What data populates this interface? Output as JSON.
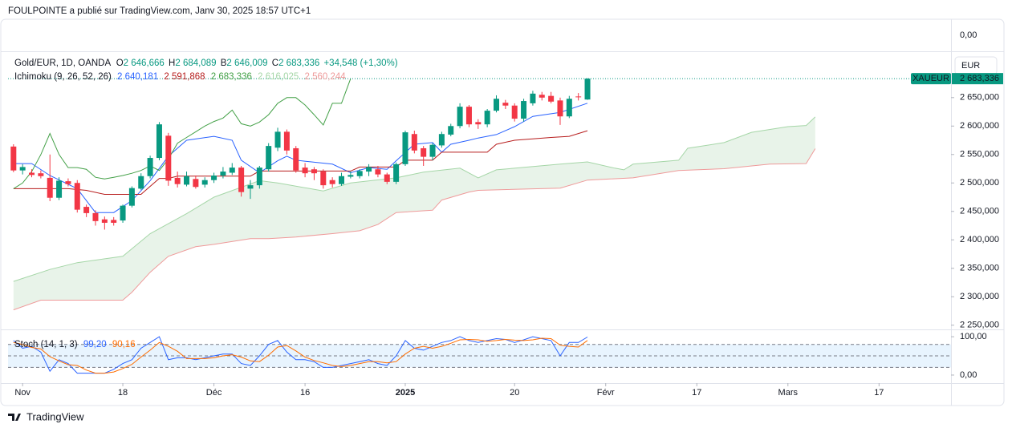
{
  "header": "FOULPOINTE a publié sur TradingView.com, Janv 30, 2025 18:57 UTC+1",
  "footer": "TradingView",
  "top_pane_label": "0,00",
  "chart_data": [
    {
      "type": "candlestick",
      "title": "Gold/EUR, 1D, OANDA",
      "ohlc_legend": [
        {
          "key": "O",
          "value": "2 646,666"
        },
        {
          "key": "H",
          "value": "2 684,089"
        },
        {
          "key": "B",
          "value": "2 646,009"
        },
        {
          "key": "C",
          "value": "2 683,336"
        }
      ],
      "change": "+34,548 (+1,30%)",
      "currency": "EUR",
      "symbol": "XAUEUR",
      "last_price_label": "2 683,336",
      "up_color": "#089981",
      "down_color": "#f23645",
      "x": [
        0,
        1,
        2,
        3,
        4,
        5,
        6,
        7,
        8,
        9,
        10,
        11,
        12,
        13,
        14,
        15,
        16,
        17,
        18,
        19,
        20,
        21,
        22,
        23,
        24,
        25,
        26,
        27,
        28,
        29,
        30,
        31,
        32,
        33,
        34,
        35,
        36,
        37,
        38,
        39,
        40,
        41,
        42,
        43,
        44,
        45,
        46,
        47,
        48,
        49,
        50,
        51,
        52,
        53,
        54,
        55,
        56,
        57,
        58,
        59,
        60,
        61,
        62,
        63
      ],
      "open": [
        2564,
        2522,
        2518,
        2517,
        2509,
        2474,
        2503,
        2500,
        2458,
        2447,
        2436,
        2435,
        2434,
        2460,
        2490,
        2512,
        2544,
        2583,
        2509,
        2497,
        2507,
        2497,
        2505,
        2513,
        2518,
        2527,
        2490,
        2496,
        2524,
        2562,
        2590,
        2561,
        2527,
        2524,
        2520,
        2505,
        2498,
        2511,
        2512,
        2520,
        2524,
        2515,
        2502,
        2533,
        2586,
        2561,
        2546,
        2566,
        2585,
        2600,
        2634,
        2607,
        2603,
        2627,
        2641,
        2636,
        2613,
        2640,
        2655,
        2653,
        2645,
        2617,
        2652,
        2646.666
      ],
      "high": [
        2568,
        2533,
        2524,
        2522,
        2550,
        2510,
        2508,
        2505,
        2462,
        2452,
        2441,
        2440,
        2462,
        2494,
        2517,
        2548,
        2607,
        2588,
        2520,
        2520,
        2513,
        2510,
        2518,
        2528,
        2535,
        2530,
        2505,
        2530,
        2570,
        2597,
        2594,
        2565,
        2535,
        2528,
        2524,
        2510,
        2518,
        2520,
        2524,
        2533,
        2530,
        2518,
        2536,
        2592,
        2592,
        2565,
        2570,
        2590,
        2604,
        2640,
        2637,
        2612,
        2630,
        2654,
        2646,
        2640,
        2648,
        2662,
        2660,
        2660,
        2650,
        2653,
        2658,
        2684.089
      ],
      "low": [
        2519,
        2515,
        2510,
        2508,
        2468,
        2470,
        2494,
        2448,
        2440,
        2425,
        2418,
        2425,
        2430,
        2457,
        2488,
        2508,
        2540,
        2495,
        2492,
        2494,
        2490,
        2492,
        2500,
        2508,
        2514,
        2476,
        2472,
        2490,
        2520,
        2556,
        2550,
        2518,
        2510,
        2505,
        2490,
        2492,
        2495,
        2508,
        2508,
        2512,
        2510,
        2498,
        2498,
        2530,
        2552,
        2530,
        2540,
        2562,
        2582,
        2596,
        2598,
        2595,
        2598,
        2624,
        2630,
        2608,
        2608,
        2636,
        2645,
        2640,
        2602,
        2614,
        2645,
        2646.009
      ],
      "close": [
        2522,
        2528,
        2514,
        2512,
        2474,
        2504,
        2498,
        2453,
        2447,
        2433,
        2430,
        2430,
        2460,
        2491,
        2512,
        2544,
        2603,
        2504,
        2498,
        2512,
        2493,
        2505,
        2513,
        2520,
        2527,
        2484,
        2496,
        2527,
        2565,
        2590,
        2557,
        2522,
        2517,
        2517,
        2496,
        2498,
        2512,
        2514,
        2521,
        2528,
        2515,
        2502,
        2533,
        2589,
        2557,
        2546,
        2567,
        2586,
        2600,
        2634,
        2603,
        2603,
        2627,
        2648,
        2636,
        2613,
        2644,
        2657,
        2650,
        2643,
        2617,
        2648,
        2651,
        2683.336
      ],
      "overlay_title": "Ichimoku (9, 26, 52, 26)",
      "overlays": [
        {
          "color": "#2962ff",
          "value_label": "2 640,181",
          "x": [
            0,
            2,
            4,
            7,
            9,
            11,
            13,
            15,
            17,
            19,
            22,
            24,
            25,
            27,
            29,
            30,
            31,
            35,
            37,
            39,
            41,
            42,
            44,
            46,
            47,
            48,
            50,
            51,
            53,
            55,
            57,
            60,
            63
          ],
          "values": [
            2534,
            2534,
            2513,
            2490,
            2448,
            2448,
            2469,
            2504,
            2547,
            2575,
            2582,
            2575,
            2540,
            2518,
            2539,
            2547,
            2540,
            2533,
            2518,
            2527,
            2524,
            2539,
            2568,
            2571,
            2554,
            2568,
            2575,
            2579,
            2585,
            2599,
            2617,
            2624,
            2640.181
          ]
        },
        {
          "color": "#b71c1c",
          "value_label": "2 591,868",
          "x": [
            0,
            6,
            8,
            10,
            14,
            15,
            16,
            17,
            18,
            26,
            27,
            37,
            38,
            42,
            43,
            46,
            47,
            52,
            53,
            55,
            59,
            61,
            63
          ],
          "values": [
            2490,
            2490,
            2487,
            2480,
            2480,
            2494,
            2508,
            2508,
            2512,
            2512,
            2521,
            2521,
            2528,
            2528,
            2540,
            2540,
            2554,
            2554,
            2568,
            2575,
            2580,
            2582,
            2591.868
          ]
        },
        {
          "color": "#43a047",
          "value_label": "2 683,336",
          "x": [
            0,
            1,
            2,
            3,
            4,
            5,
            6,
            7,
            8,
            9,
            10,
            11,
            12,
            13,
            14,
            15,
            16,
            17,
            18,
            19,
            20,
            21,
            22,
            23,
            24,
            25,
            26,
            27,
            28,
            29,
            30,
            31,
            32,
            33,
            34,
            35,
            36,
            37
          ],
          "values": [
            2490,
            2500,
            2520,
            2550,
            2587,
            2550,
            2527,
            2527,
            2524,
            2510,
            2507,
            2510,
            2513,
            2517,
            2522,
            2530,
            2522,
            2542,
            2570,
            2580,
            2590,
            2600,
            2608,
            2614,
            2628,
            2604,
            2600,
            2607,
            2620,
            2640,
            2650,
            2650,
            2637,
            2620,
            2602,
            2640,
            2640,
            2683.336
          ]
        },
        {
          "color": "#a5d6a7",
          "value_label": "2 616,025",
          "cloud": "top",
          "x": [
            0,
            4,
            7,
            12,
            15,
            19,
            22,
            27,
            29,
            34,
            37,
            42,
            45,
            49,
            51,
            53,
            60,
            63,
            66,
            67,
            68,
            73,
            74,
            78,
            81,
            85,
            87,
            88
          ],
          "values": [
            2327,
            2348,
            2360,
            2371,
            2411,
            2446,
            2475,
            2504,
            2500,
            2486,
            2500,
            2509,
            2519,
            2526,
            2509,
            2523,
            2533,
            2537,
            2526,
            2523,
            2533,
            2540,
            2561,
            2571,
            2589,
            2599,
            2601,
            2616.025
          ]
        },
        {
          "color": "#ef9a9a",
          "value_label": "2 560,244",
          "cloud": "bottom",
          "x": [
            0,
            3,
            12,
            13,
            15,
            17,
            20,
            22,
            26,
            28,
            31,
            35,
            38,
            40,
            42,
            46,
            47,
            50,
            51,
            60,
            63,
            68,
            73,
            78,
            83,
            87,
            88
          ],
          "values": [
            2277,
            2294,
            2294,
            2308,
            2343,
            2371,
            2388,
            2392,
            2402,
            2402,
            2405,
            2411,
            2416,
            2427,
            2448,
            2452,
            2470,
            2484,
            2487,
            2491,
            2505,
            2509,
            2522,
            2525,
            2533,
            2534,
            2560.244
          ]
        }
      ],
      "cloud_color": "rgba(67,160,71,0.12)",
      "xlim": [
        -0.6,
        102.9
      ],
      "xticks": [
        {
          "value": 1,
          "label": "Nov"
        },
        {
          "value": 12,
          "label": "18"
        },
        {
          "value": 22,
          "label": "Déc"
        },
        {
          "value": 32,
          "label": "16"
        },
        {
          "value": 43,
          "label": "2025"
        },
        {
          "value": 55,
          "label": "20"
        },
        {
          "value": 65,
          "label": "Févr"
        },
        {
          "value": 75,
          "label": "17"
        },
        {
          "value": 85,
          "label": "Mars"
        },
        {
          "value": 95,
          "label": "17"
        }
      ],
      "ylim": [
        2244,
        2730
      ],
      "yticks": [
        {
          "value": 2650,
          "label": "2 650,000"
        },
        {
          "value": 2600,
          "label": "2 600,000"
        },
        {
          "value": 2550,
          "label": "2 550,000"
        },
        {
          "value": 2500,
          "label": "2 500,000"
        },
        {
          "value": 2450,
          "label": "2 450,000"
        },
        {
          "value": 2400,
          "label": "2 400,000"
        },
        {
          "value": 2350,
          "label": "2 350,000"
        },
        {
          "value": 2300,
          "label": "2 300,000"
        },
        {
          "value": 2250,
          "label": "2 250,000"
        }
      ]
    },
    {
      "type": "line",
      "title": "Stoch (14, 1, 3)",
      "x": [
        0,
        1,
        2,
        3,
        4,
        5,
        6,
        7,
        8,
        9,
        10,
        11,
        12,
        13,
        14,
        15,
        16,
        17,
        18,
        19,
        20,
        21,
        22,
        23,
        24,
        25,
        26,
        27,
        28,
        29,
        30,
        31,
        32,
        33,
        34,
        35,
        36,
        37,
        38,
        39,
        40,
        41,
        42,
        43,
        44,
        45,
        46,
        47,
        48,
        49,
        50,
        51,
        52,
        53,
        54,
        55,
        56,
        57,
        58,
        59,
        60,
        61,
        62,
        63
      ],
      "series": [
        {
          "color": "#2962ff",
          "value_label": "99,20",
          "values": [
            90,
            70,
            75,
            60,
            10,
            40,
            30,
            5,
            5,
            5,
            5,
            15,
            30,
            40,
            70,
            85,
            100,
            40,
            45,
            45,
            40,
            45,
            50,
            55,
            55,
            30,
            25,
            50,
            80,
            90,
            60,
            40,
            40,
            35,
            20,
            20,
            25,
            30,
            35,
            40,
            30,
            25,
            50,
            90,
            70,
            65,
            75,
            85,
            90,
            100,
            90,
            85,
            90,
            95,
            93,
            85,
            92,
            100,
            95,
            90,
            50,
            85,
            85,
            99.2
          ]
        },
        {
          "color": "#ff6d00",
          "value_label": "90,16",
          "values": [
            85,
            80,
            72,
            68,
            48,
            37,
            27,
            25,
            13,
            5,
            5,
            8,
            17,
            28,
            47,
            65,
            85,
            75,
            62,
            43,
            43,
            43,
            45,
            50,
            53,
            47,
            37,
            35,
            52,
            73,
            77,
            63,
            47,
            38,
            32,
            25,
            22,
            25,
            30,
            35,
            35,
            32,
            35,
            55,
            70,
            75,
            70,
            75,
            83,
            92,
            93,
            92,
            88,
            90,
            93,
            91,
            90,
            92,
            96,
            95,
            78,
            75,
            73,
            90.16
          ]
        }
      ],
      "band_lines": [
        80,
        50,
        20
      ],
      "band_fill": "rgba(33,150,243,0.1)",
      "xlim": [
        -0.6,
        102.9
      ],
      "ylim": [
        -21,
        117
      ],
      "yticks": [
        {
          "value": 100,
          "label": "100,00"
        },
        {
          "value": 0,
          "label": "0,00"
        }
      ]
    }
  ]
}
